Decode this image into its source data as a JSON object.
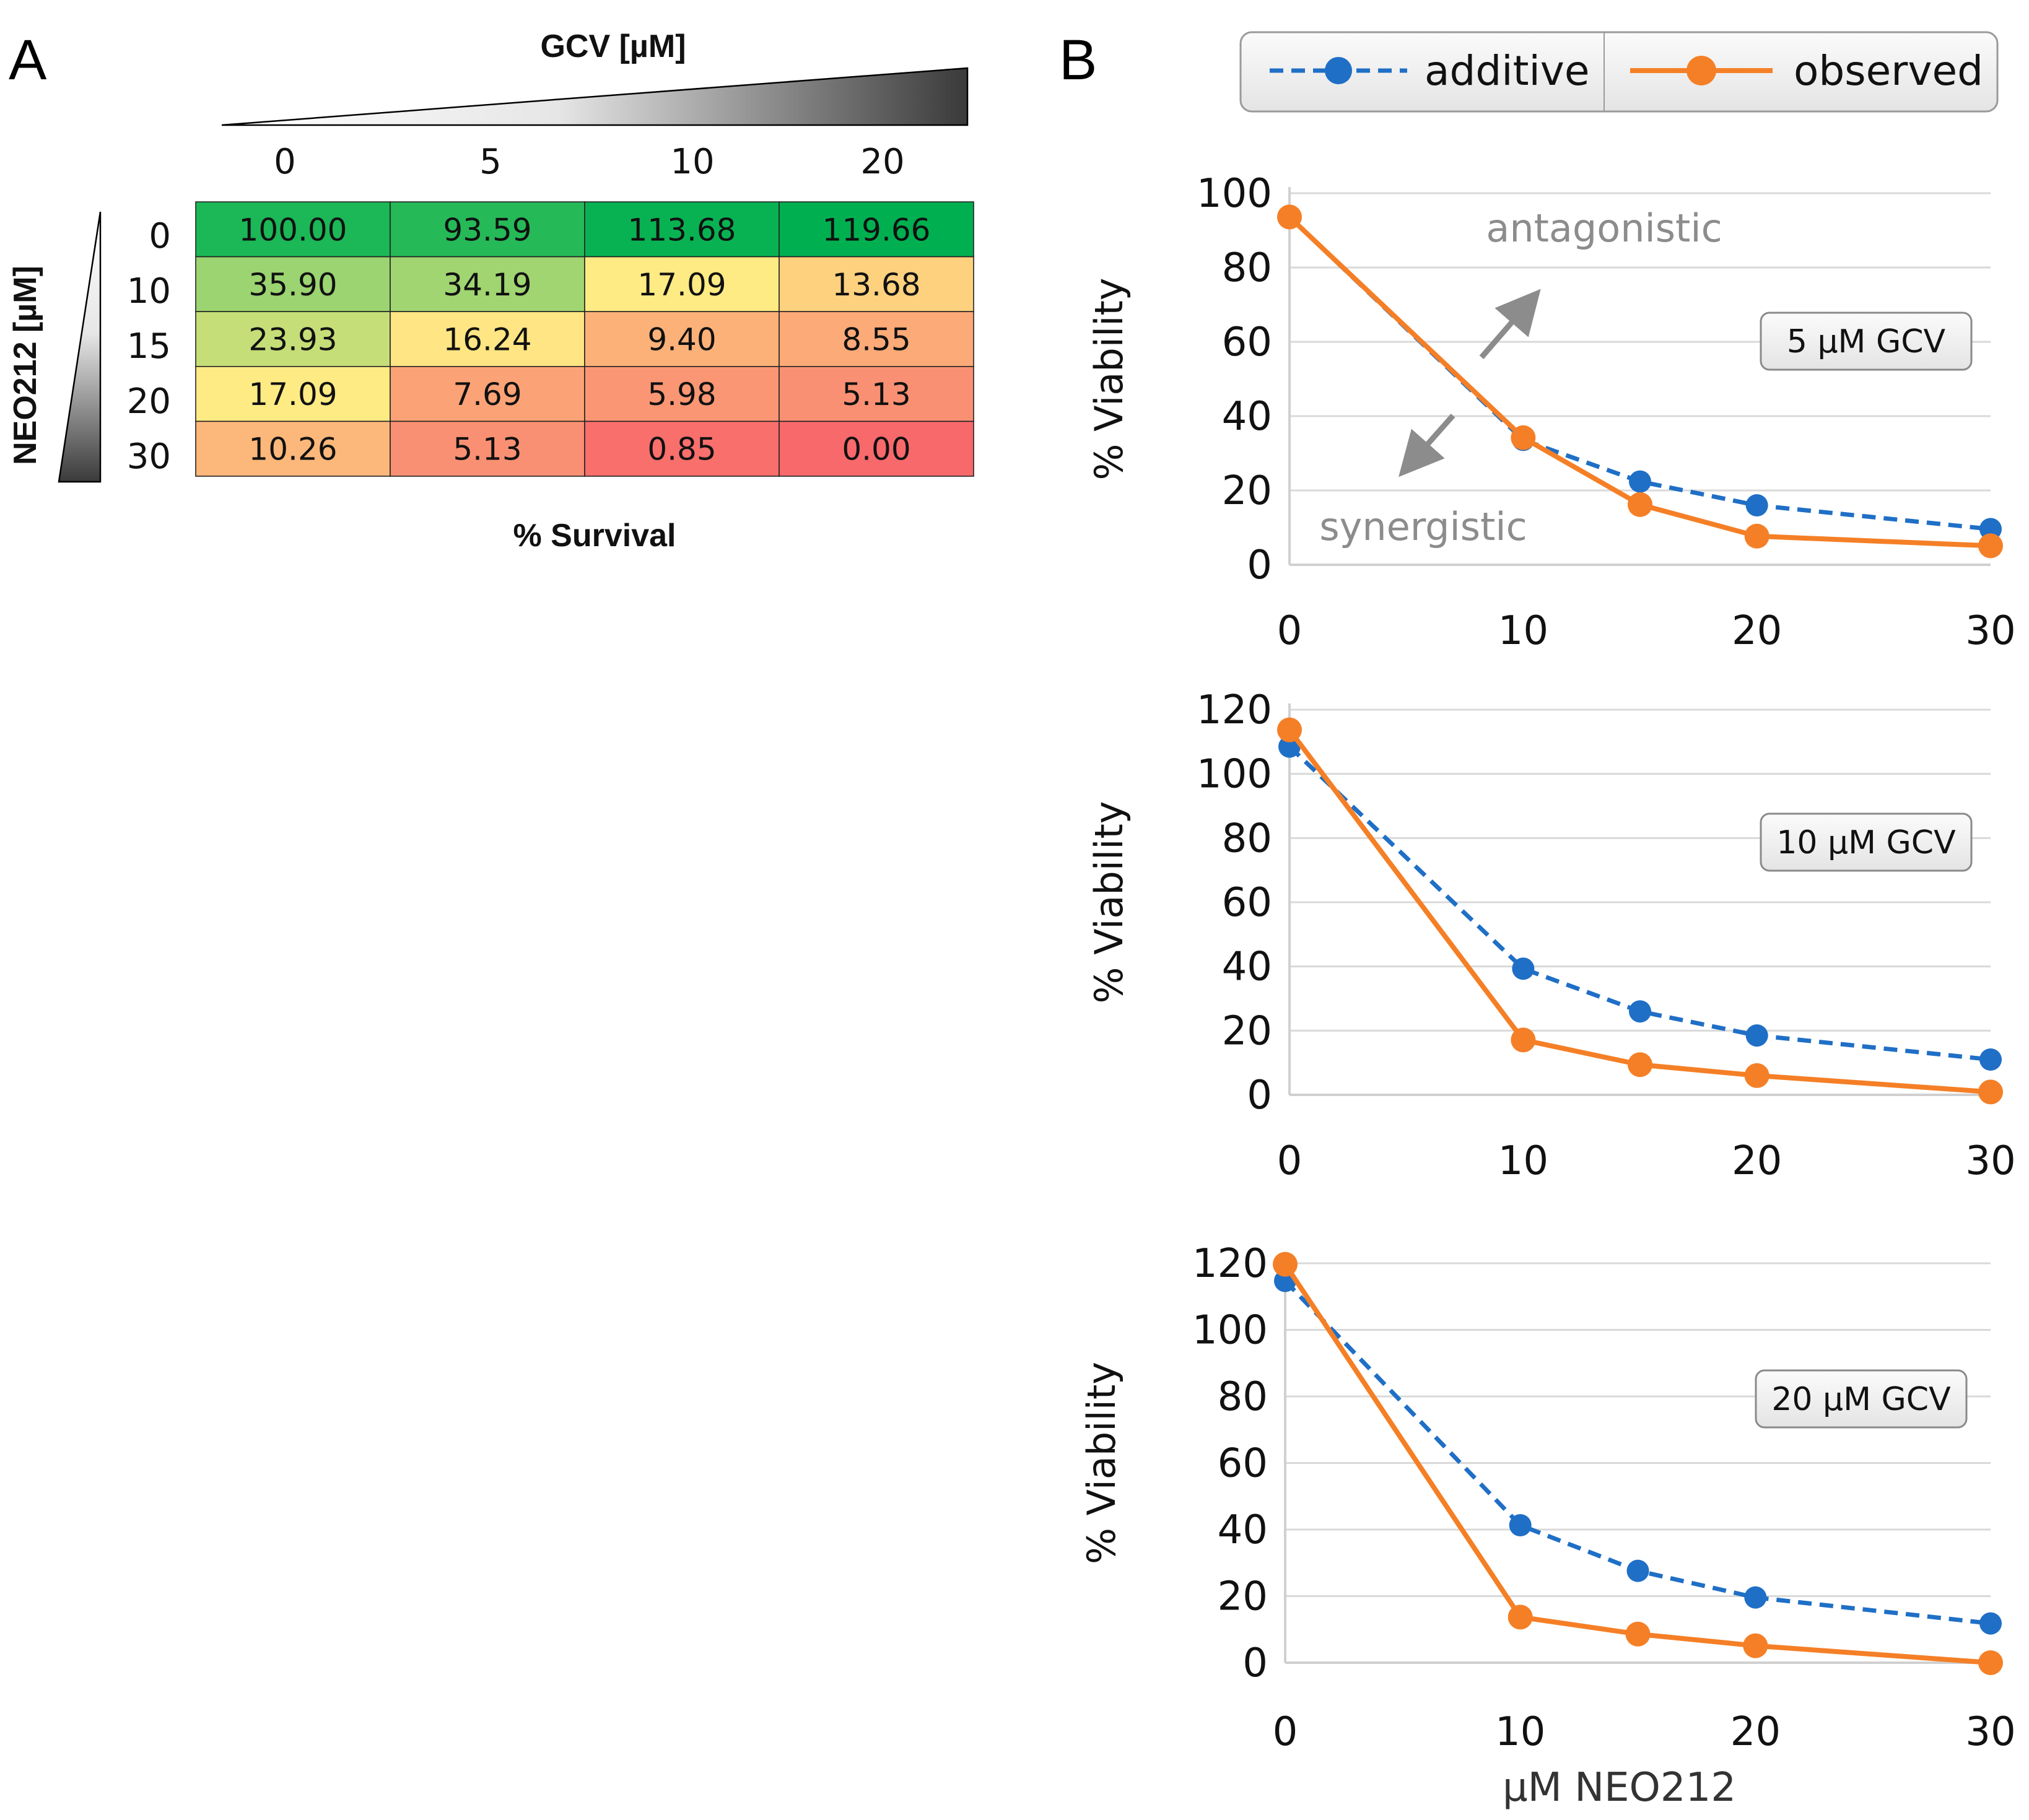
{
  "panel_a": {
    "letter": "A",
    "gcv_header": "GCV [µM]",
    "neo_header": "NEO212 [µM]",
    "survival_label": "% Survival",
    "gcv_ticks": [
      "0",
      "5",
      "10",
      "20"
    ],
    "neo_ticks": [
      "0",
      "10",
      "15",
      "20",
      "30"
    ]
  },
  "panel_b": {
    "letter": "B",
    "legend": {
      "additive": "additive",
      "observed": "observed"
    },
    "antagonistic": "antagonistic",
    "synergistic": "synergistic",
    "shared_xlabel": "µM NEO212"
  },
  "colors": {
    "additive": "#1f6fc6",
    "observed": "#f57f26",
    "grid": "#d9d9d9",
    "heat_high": "#00b050",
    "heat_mid": "#ffeb84",
    "heat_low": "#f8696b"
  },
  "chart_data": [
    {
      "type": "heatmap",
      "title": "% Survival",
      "xlabel": "GCV [µM]",
      "ylabel": "NEO212 [µM]",
      "columns": [
        "0",
        "5",
        "10",
        "20"
      ],
      "rows": [
        "0",
        "10",
        "15",
        "20",
        "30"
      ],
      "cells": [
        [
          "100.00",
          "93.59",
          "113.68",
          "119.66"
        ],
        [
          "35.90",
          "34.19",
          "17.09",
          "13.68"
        ],
        [
          "23.93",
          "16.24",
          "9.40",
          "8.55"
        ],
        [
          "17.09",
          "7.69",
          "5.98",
          "5.13"
        ],
        [
          "10.26",
          "5.13",
          "0.85",
          "0.00"
        ]
      ],
      "color_scale": {
        "low": "#f8696b",
        "mid": "#ffeb84",
        "high": "#00b050"
      }
    },
    {
      "type": "line",
      "box_label": "5 µM GCV",
      "xlabel": "",
      "ylabel": "% Viability",
      "x": [
        0,
        10,
        15,
        20,
        30
      ],
      "ylim": [
        0,
        100
      ],
      "yticks": [
        0,
        20,
        40,
        60,
        80,
        100
      ],
      "xticks": [
        0,
        10,
        20,
        30
      ],
      "series": [
        {
          "name": "additive",
          "values": [
            93.6,
            33.6,
            22.4,
            16.0,
            9.6
          ]
        },
        {
          "name": "observed",
          "values": [
            93.6,
            34.2,
            16.2,
            7.7,
            5.1
          ]
        }
      ]
    },
    {
      "type": "line",
      "box_label": "10 µM GCV",
      "xlabel": "",
      "ylabel": "% Viability",
      "x": [
        0,
        10,
        15,
        20,
        30
      ],
      "ylim": [
        0,
        120
      ],
      "yticks": [
        0,
        20,
        40,
        60,
        80,
        100,
        120
      ],
      "xticks": [
        0,
        10,
        20,
        30
      ],
      "series": [
        {
          "name": "additive",
          "values": [
            108.5,
            39.3,
            26.0,
            18.5,
            11.0
          ]
        },
        {
          "name": "observed",
          "values": [
            113.7,
            17.1,
            9.4,
            6.0,
            0.9
          ]
        }
      ]
    },
    {
      "type": "line",
      "box_label": "20 µM GCV",
      "xlabel": "µM NEO212",
      "ylabel": "% Viability",
      "x": [
        0,
        10,
        15,
        20,
        30
      ],
      "ylim": [
        0,
        120
      ],
      "yticks": [
        0,
        20,
        40,
        60,
        80,
        100,
        120
      ],
      "xticks": [
        0,
        10,
        20,
        30
      ],
      "series": [
        {
          "name": "additive",
          "values": [
            114.7,
            41.3,
            27.6,
            19.6,
            11.8
          ]
        },
        {
          "name": "observed",
          "values": [
            119.7,
            13.7,
            8.6,
            5.1,
            0.0
          ]
        }
      ]
    }
  ]
}
